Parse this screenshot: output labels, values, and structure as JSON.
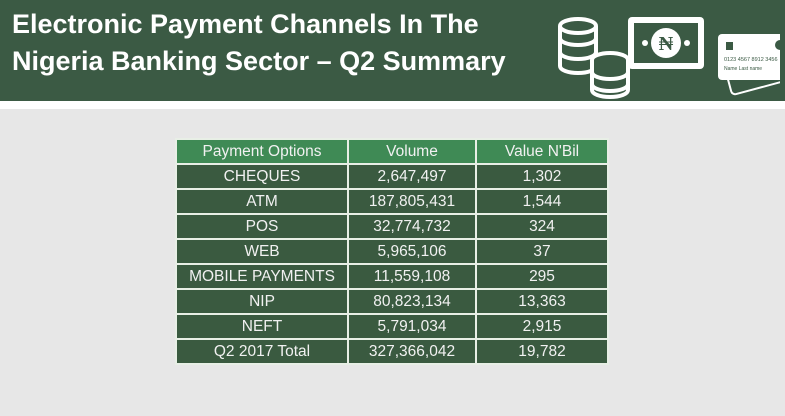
{
  "header": {
    "title": "Electronic Payment Channels In The Nigeria Banking Sector – Q2 Summary",
    "card_number": "0123  4567  8912  3456",
    "card_name": "Name  Last name",
    "currency_symbol": "₦"
  },
  "table": {
    "columns": [
      "Payment Options",
      "Volume",
      "Value N'Bil"
    ],
    "rows": [
      [
        "CHEQUES",
        "2,647,497",
        "1,302"
      ],
      [
        "ATM",
        "187,805,431",
        "1,544"
      ],
      [
        "POS",
        "32,774,732",
        "324"
      ],
      [
        "WEB",
        "5,965,106",
        "37"
      ],
      [
        "MOBILE PAYMENTS",
        "11,559,108",
        "295"
      ],
      [
        "NIP",
        "80,823,134",
        "13,363"
      ],
      [
        "NEFT",
        "5,791,034",
        "2,915"
      ],
      [
        "Q2 2017 Total",
        "327,366,042",
        "19,782"
      ]
    ]
  },
  "colors": {
    "banner": "#3b5a44",
    "header_row": "#3f8a55",
    "row": "#3a5a40",
    "background": "#e7e7e7"
  }
}
